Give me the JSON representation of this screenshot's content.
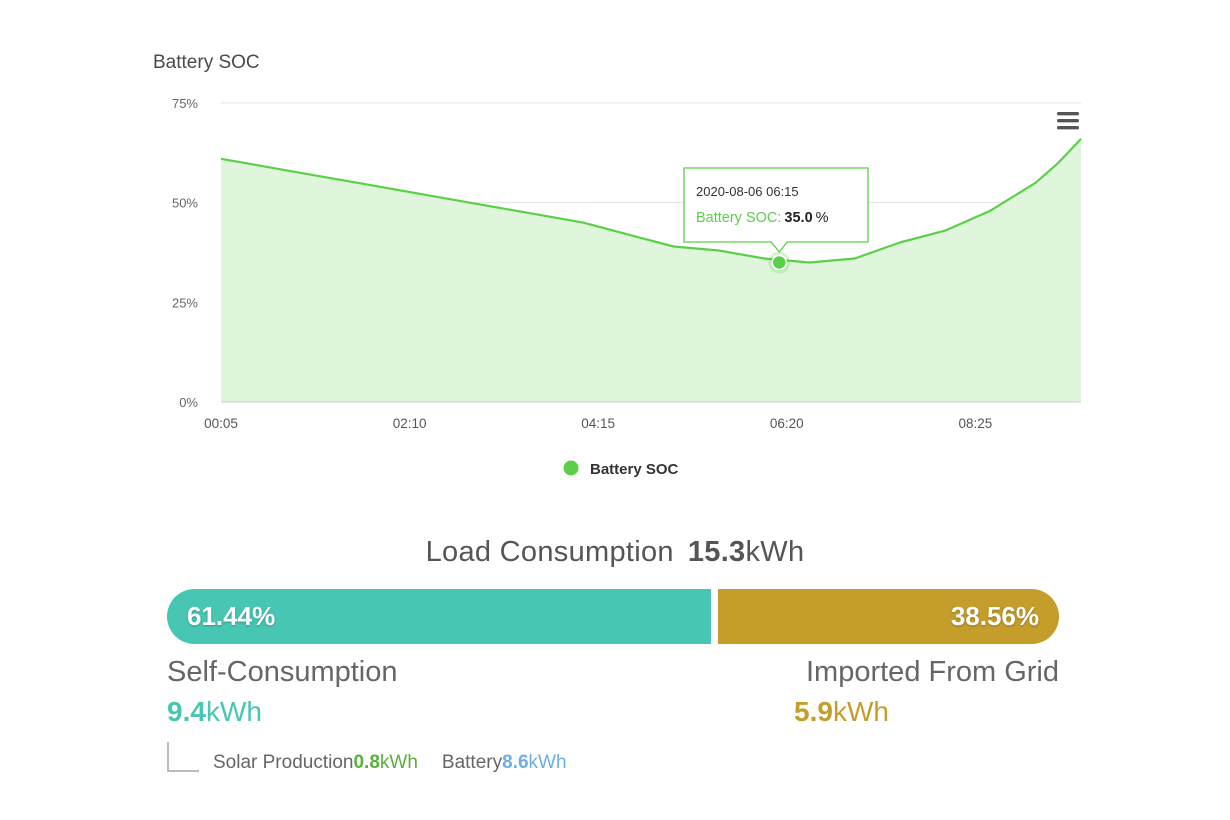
{
  "chart_data": {
    "type": "area",
    "title": "Battery SOC",
    "series": [
      {
        "name": "Battery SOC",
        "color": "#5ccf48",
        "fill": "#e0f6dc",
        "x": [
          "00:05",
          "00:35",
          "01:05",
          "01:35",
          "02:05",
          "02:35",
          "03:05",
          "03:35",
          "04:05",
          "04:35",
          "05:05",
          "05:35",
          "06:05",
          "06:35",
          "07:05",
          "07:35",
          "08:05",
          "08:35",
          "09:05",
          "09:20",
          "09:35"
        ],
        "values": [
          61,
          59,
          57,
          55,
          53,
          51,
          49,
          47,
          45,
          42,
          39,
          38,
          36,
          35,
          36,
          40,
          43,
          48,
          55,
          60,
          66
        ]
      }
    ],
    "x_ticks": [
      "00:05",
      "02:10",
      "04:15",
      "06:20",
      "08:25"
    ],
    "y_ticks": [
      "0%",
      "25%",
      "50%",
      "75%"
    ],
    "ylim": [
      0,
      75
    ],
    "legend": {
      "position": "bottom-center",
      "label": "Battery SOC"
    },
    "grid": true,
    "tooltip": {
      "timestamp": "2020-08-06 06:15",
      "label": "Battery SOC:",
      "value": "35.0",
      "unit": "%",
      "x": "06:15",
      "y": 35
    }
  },
  "summary": {
    "title": "Load Consumption",
    "total_value": "15.3",
    "total_unit": "kWh",
    "self_percent": "61.44%",
    "self_fraction": 0.6144,
    "grid_percent": "38.56%",
    "self_label": "Self-Consumption",
    "self_value": "9.4",
    "self_unit": "kWh",
    "grid_label": "Imported From Grid",
    "grid_value": "5.9",
    "grid_unit": "kWh",
    "solar_label": "Solar Production",
    "solar_value": "0.8",
    "solar_unit": "kWh",
    "battery_label": "Battery",
    "battery_value": "8.6",
    "battery_unit": "kWh",
    "colors": {
      "self": "#47c6b4",
      "grid": "#c49d2a",
      "solar": "#59b13b",
      "battery": "#6eaee6"
    }
  },
  "icons": {
    "menu": "hamburger-menu-icon"
  }
}
